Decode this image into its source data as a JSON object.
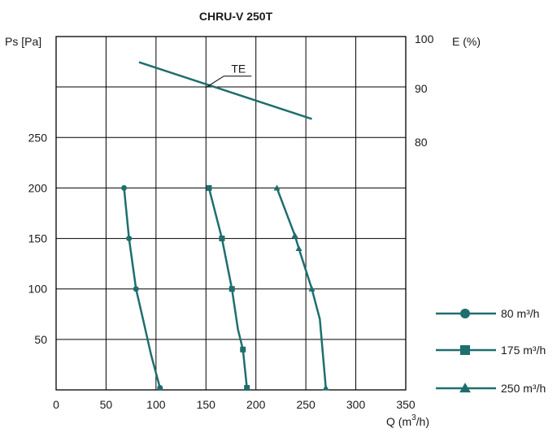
{
  "chart_data": {
    "type": "line",
    "title": "CHRU-V 250T",
    "left_axis_label": "Ps [Pa]",
    "right_axis_label": "E (%)",
    "x_axis_label_prefix": "Q (m",
    "x_axis_label_sup": "3",
    "x_axis_label_suffix": "/h)",
    "xlim": [
      0,
      350
    ],
    "ylim": [
      0,
      350
    ],
    "x_ticks": [
      "0",
      "50",
      "100",
      "150",
      "200",
      "250",
      "300",
      "350"
    ],
    "x_tick_values": [
      0,
      50,
      100,
      150,
      200,
      250,
      300,
      350
    ],
    "y_ticks": [
      "50",
      "100",
      "150",
      "200",
      "250"
    ],
    "y_tick_values": [
      50,
      100,
      150,
      200,
      250
    ],
    "efficiency_ylim": [
      75,
      100
    ],
    "efficiency_ticks": [
      "80",
      "90",
      "100"
    ],
    "efficiency_tick_values": [
      80,
      90,
      100
    ],
    "grid": true,
    "line_color": "#1f6e6e",
    "series": [
      {
        "name": "80 m³/h",
        "marker": "circle",
        "points": [
          [
            68,
            200
          ],
          [
            73,
            150
          ],
          [
            80,
            100
          ],
          [
            87,
            70
          ],
          [
            95,
            35
          ],
          [
            104,
            2
          ]
        ],
        "marked": [
          [
            68,
            200
          ],
          [
            73,
            150
          ],
          [
            80,
            100
          ],
          [
            104,
            2
          ]
        ]
      },
      {
        "name": "175 m³/h",
        "marker": "square",
        "points": [
          [
            153,
            200
          ],
          [
            166,
            150
          ],
          [
            176,
            100
          ],
          [
            182,
            60
          ],
          [
            187,
            40
          ],
          [
            191,
            2
          ]
        ],
        "marked": [
          [
            153,
            200
          ],
          [
            166,
            150
          ],
          [
            176,
            100
          ],
          [
            187,
            40
          ],
          [
            191,
            2
          ]
        ]
      },
      {
        "name": "250 m³/h",
        "marker": "triangle",
        "points": [
          [
            221,
            200
          ],
          [
            239,
            153
          ],
          [
            243,
            140
          ],
          [
            256,
            100
          ],
          [
            264,
            70
          ],
          [
            270,
            2
          ]
        ],
        "marked": [
          [
            221,
            200
          ],
          [
            239,
            153
          ],
          [
            243,
            140
          ],
          [
            256,
            100
          ],
          [
            270,
            2
          ]
        ]
      }
    ],
    "efficiency_line": {
      "name": "TE",
      "points": [
        [
          83,
          95.5
        ],
        [
          256,
          84.5
        ]
      ]
    },
    "legend_position": "bottom-right"
  }
}
